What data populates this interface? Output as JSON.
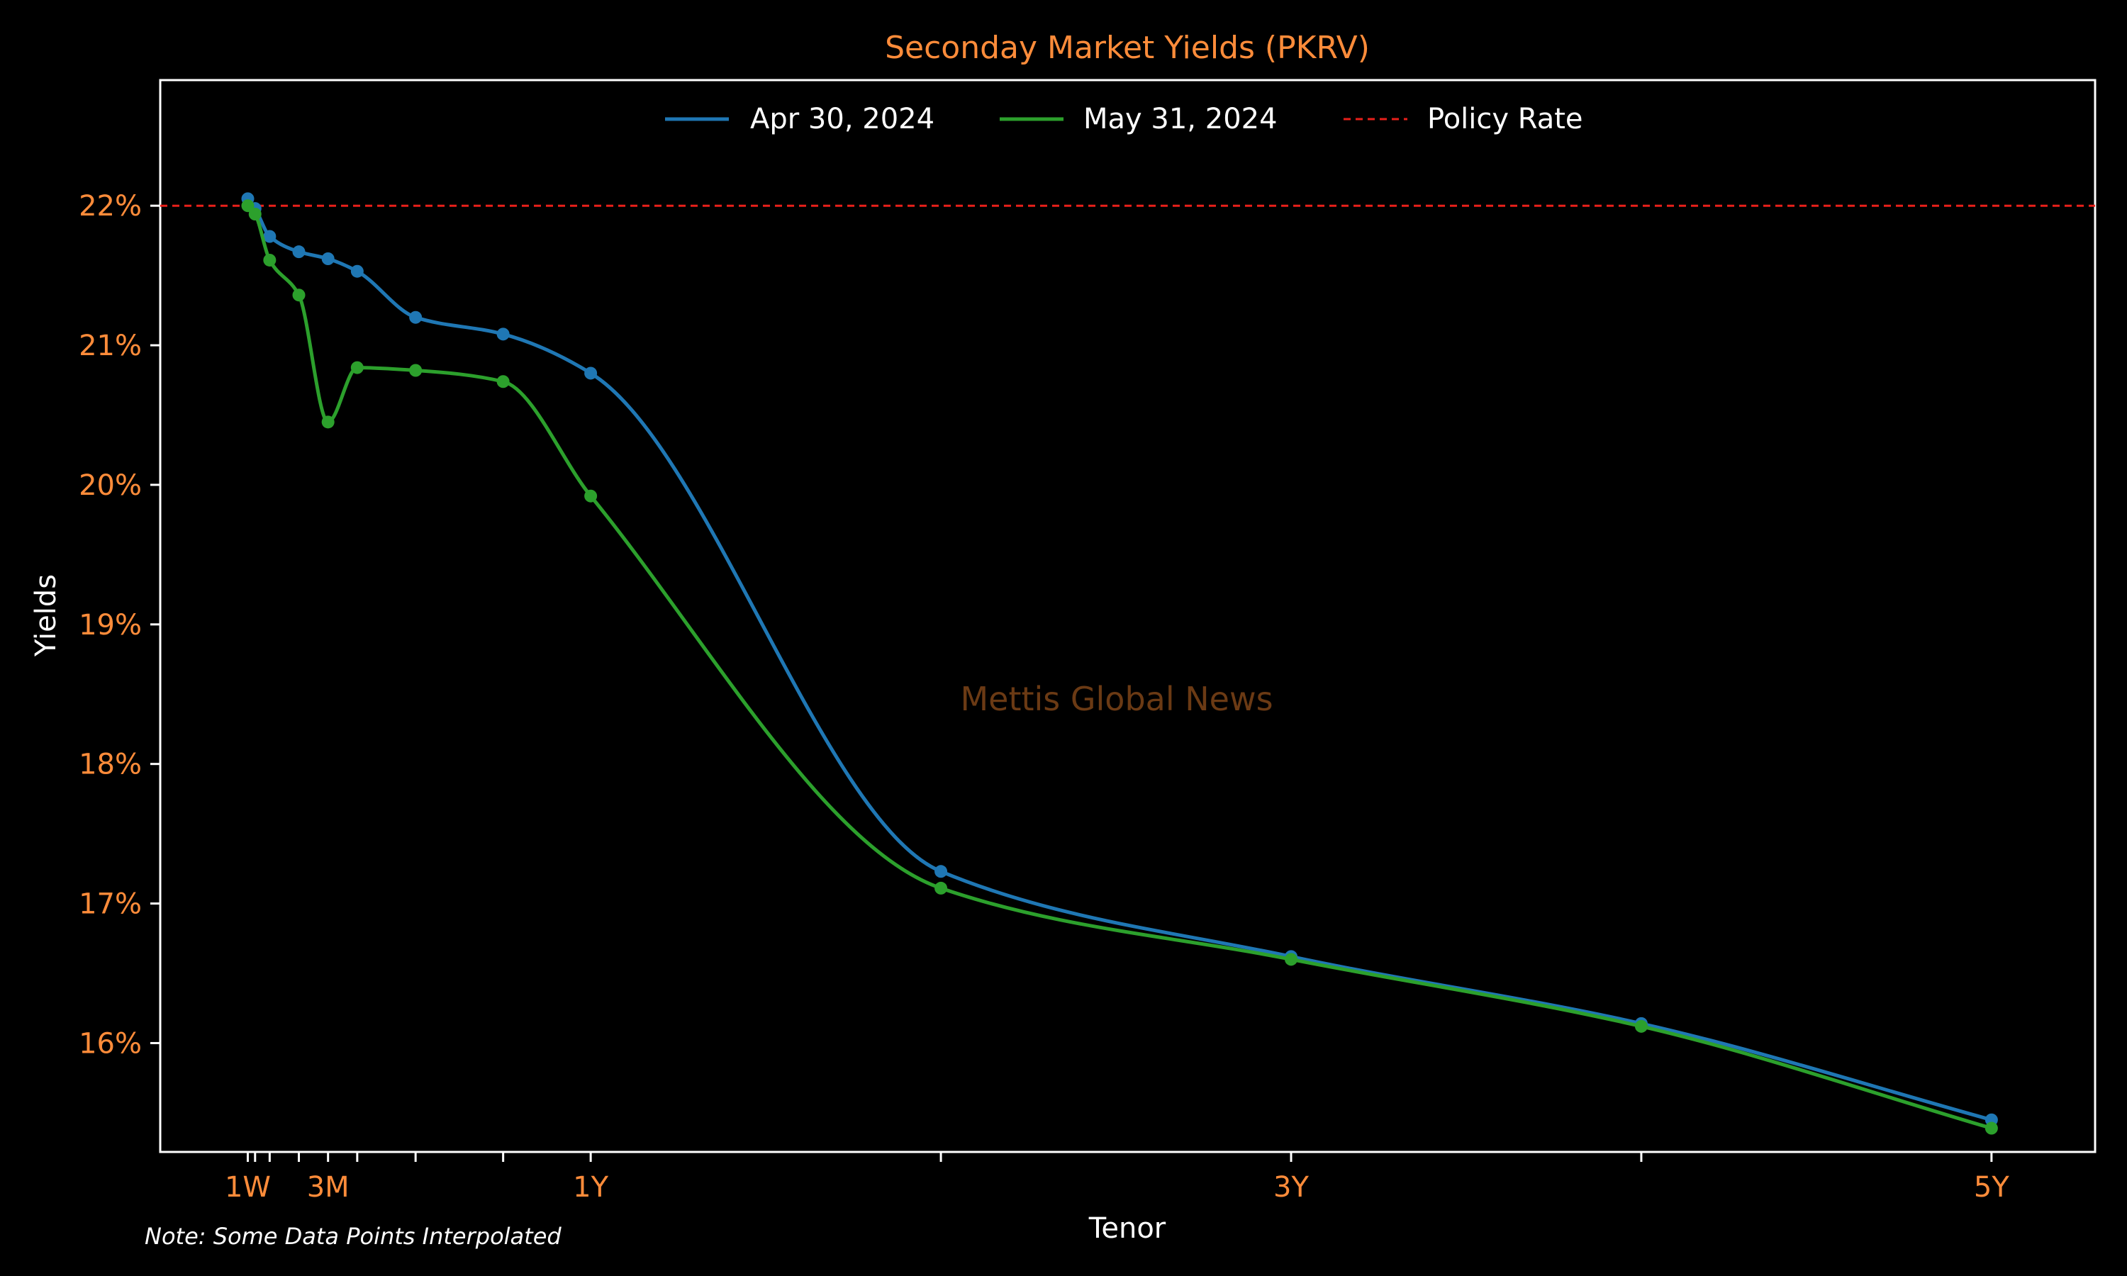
{
  "colors": {
    "background": "#000000",
    "frame": "#ffffff",
    "accent": "#ff8c3a",
    "label_text": "#ffffff",
    "series_apr": "#1f77b4",
    "series_may": "#2ca02c",
    "policy_rate": "#e8201a",
    "watermark": "#6b3a14"
  },
  "watermark": "Mettis Global News",
  "note": "Note: Some Data Points Interpolated",
  "chart_data": {
    "type": "line",
    "title": "Seconday Market Yields (PKRV)",
    "xlabel": "Tenor",
    "ylabel": "Yields",
    "xlim": [
      -3,
      63.3
    ],
    "ylim": [
      15.22,
      22.9
    ],
    "y_ticks": [
      16,
      17,
      18,
      19,
      20,
      21,
      22
    ],
    "y_tick_labels": [
      "16%",
      "17%",
      "18%",
      "19%",
      "20%",
      "21%",
      "22%"
    ],
    "x_ticks": [
      0,
      0.25,
      0.75,
      1.75,
      2.75,
      3.75,
      5.75,
      8.75,
      11.75,
      23.75,
      35.75,
      47.75,
      59.75
    ],
    "x_tick_labels": [
      {
        "x": 0,
        "label": "1W"
      },
      {
        "x": 2.75,
        "label": "3M"
      },
      {
        "x": 11.75,
        "label": "1Y"
      },
      {
        "x": 35.75,
        "label": "3Y"
      },
      {
        "x": 59.75,
        "label": "5Y"
      }
    ],
    "legend_position": "top-center",
    "grid": false,
    "series": [
      {
        "name": "Apr 30, 2024",
        "color": "#1f77b4",
        "x": [
          0,
          0.25,
          0.75,
          1.75,
          2.75,
          3.75,
          5.75,
          8.75,
          11.75,
          23.75,
          35.75,
          47.75,
          59.75
        ],
        "y": [
          22.05,
          21.98,
          21.78,
          21.67,
          21.62,
          21.53,
          21.2,
          21.08,
          20.8,
          17.23,
          16.62,
          16.14,
          15.45
        ]
      },
      {
        "name": "May 31, 2024",
        "color": "#2ca02c",
        "x": [
          0,
          0.25,
          0.75,
          1.75,
          2.75,
          3.75,
          5.75,
          8.75,
          11.75,
          23.75,
          35.75,
          47.75,
          59.75
        ],
        "y": [
          22.0,
          21.94,
          21.61,
          21.36,
          20.45,
          20.84,
          20.82,
          20.74,
          19.92,
          17.11,
          16.6,
          16.12,
          15.39
        ]
      }
    ],
    "reference_lines": [
      {
        "name": "Policy Rate",
        "y": 22.0,
        "color": "#e8201a",
        "style": "dashed"
      }
    ]
  }
}
